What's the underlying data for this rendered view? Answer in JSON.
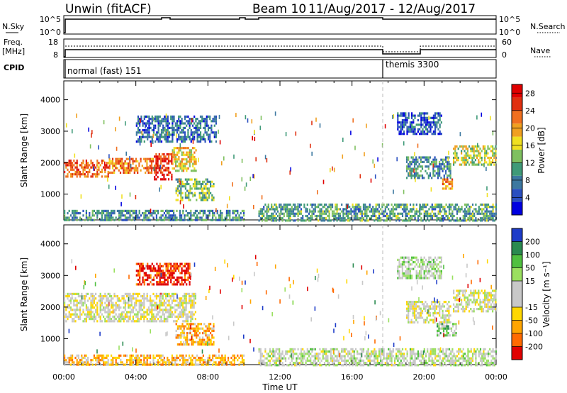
{
  "header": {
    "station": "Unwin (fitACF)",
    "beam": "Beam 10",
    "dates": "11/Aug/2017 - 12/Aug/2017"
  },
  "strip_labels": {
    "nsky": "N.Sky",
    "nsky_top": "10^5",
    "nsky_bottom": "10^0",
    "nsearch": "N.Search",
    "nsearch_top": "10^5",
    "nsearch_bottom": "10^0",
    "freq_line1": "Freq.",
    "freq_line2": "[MHz]",
    "freq_top": "18",
    "freq_bottom": "8",
    "nave": "Nave",
    "nave_top": "60",
    "nave_bottom": "0",
    "cpid": "CPID"
  },
  "cpid_modes": [
    {
      "label": "normal (fast) 151",
      "start_hour": 0
    },
    {
      "label": "themis 3300",
      "start_hour": 18
    }
  ],
  "colors": {
    "power_scale": [
      "#0000e0",
      "#2a4fc0",
      "#3c78a0",
      "#3f9a78",
      "#7fc060",
      "#f0e020",
      "#f0a020",
      "#f07020",
      "#e03010",
      "#e00000"
    ],
    "velocity_scale": [
      "#e00000",
      "#ff6a00",
      "#ffa500",
      "#ffd700",
      "#c8c8c8",
      "#c8c8c8",
      "#9be060",
      "#50c040",
      "#2a8a50",
      "#1e3cc8"
    ]
  },
  "chart_data": [
    {
      "type": "heatmap",
      "name": "power",
      "ylabel": "Slant Range [km]",
      "yticks": [
        1000,
        2000,
        3000,
        4000
      ],
      "ylim": [
        180,
        4600
      ],
      "xlim": [
        0,
        24
      ],
      "colorbar_label": "Power [dB]",
      "colorbar_ticks": [
        4,
        8,
        12,
        16,
        20,
        24,
        28
      ],
      "colorbar_range": [
        0,
        30
      ],
      "regions": [
        {
          "t0": 0.0,
          "t1": 2.5,
          "r0": 1550,
          "r1": 2100,
          "level": 0.78
        },
        {
          "t0": 2.5,
          "t1": 5.0,
          "r0": 1650,
          "r1": 2150,
          "level": 0.72
        },
        {
          "t0": 5.0,
          "t1": 6.0,
          "r0": 1450,
          "r1": 2300,
          "level": 0.9
        },
        {
          "t0": 6.0,
          "t1": 7.3,
          "r0": 1750,
          "r1": 2500,
          "level": 0.58
        },
        {
          "t0": 6.2,
          "t1": 8.3,
          "r0": 850,
          "r1": 1500,
          "level": 0.42
        },
        {
          "t0": 4.0,
          "t1": 8.5,
          "r0": 2700,
          "r1": 3500,
          "level": 0.22
        },
        {
          "t0": 0.0,
          "t1": 10.0,
          "r0": 180,
          "r1": 500,
          "level": 0.3
        },
        {
          "t0": 10.8,
          "t1": 24.0,
          "r0": 180,
          "r1": 700,
          "level": 0.35
        },
        {
          "t0": 19.0,
          "t1": 21.5,
          "r0": 1500,
          "r1": 2200,
          "level": 0.3
        },
        {
          "t0": 21.0,
          "t1": 21.6,
          "r0": 1150,
          "r1": 1500,
          "level": 0.72
        },
        {
          "t0": 21.6,
          "t1": 24.0,
          "r0": 1950,
          "r1": 2550,
          "level": 0.5
        },
        {
          "t0": 18.5,
          "t1": 21.0,
          "r0": 2900,
          "r1": 3600,
          "level": 0.2
        }
      ]
    },
    {
      "type": "heatmap",
      "name": "velocity",
      "ylabel": "Slant Range [km]",
      "xlabel": "Time UT",
      "yticks": [
        1000,
        2000,
        3000,
        4000
      ],
      "ylim": [
        180,
        4600
      ],
      "xlim": [
        0,
        24
      ],
      "xticks": [
        "00:00",
        "04:00",
        "08:00",
        "12:00",
        "16:00",
        "20:00",
        "00:00"
      ],
      "colorbar_label": "Velocity [m s⁻¹]",
      "colorbar_ticks": [
        "-200",
        "-100",
        "-50",
        "-15",
        "15",
        "50",
        "100",
        "200"
      ],
      "regions": [
        {
          "t0": 0.0,
          "t1": 7.3,
          "r0": 1550,
          "r1": 2450,
          "level": 0.48
        },
        {
          "t0": 6.2,
          "t1": 8.3,
          "r0": 850,
          "r1": 1500,
          "level": 0.28
        },
        {
          "t0": 4.0,
          "t1": 7.0,
          "r0": 2750,
          "r1": 3400,
          "level": 0.05
        },
        {
          "t0": 0.0,
          "t1": 10.0,
          "r0": 180,
          "r1": 500,
          "level": 0.3
        },
        {
          "t0": 10.8,
          "t1": 24.0,
          "r0": 180,
          "r1": 700,
          "level": 0.55
        },
        {
          "t0": 19.0,
          "t1": 21.5,
          "r0": 1500,
          "r1": 2200,
          "level": 0.48
        },
        {
          "t0": 20.7,
          "t1": 21.8,
          "r0": 1100,
          "r1": 1500,
          "level": 0.68
        },
        {
          "t0": 21.6,
          "t1": 24.0,
          "r0": 1900,
          "r1": 2550,
          "level": 0.5
        },
        {
          "t0": 18.5,
          "t1": 21.0,
          "r0": 2900,
          "r1": 3600,
          "level": 0.6
        }
      ]
    }
  ]
}
